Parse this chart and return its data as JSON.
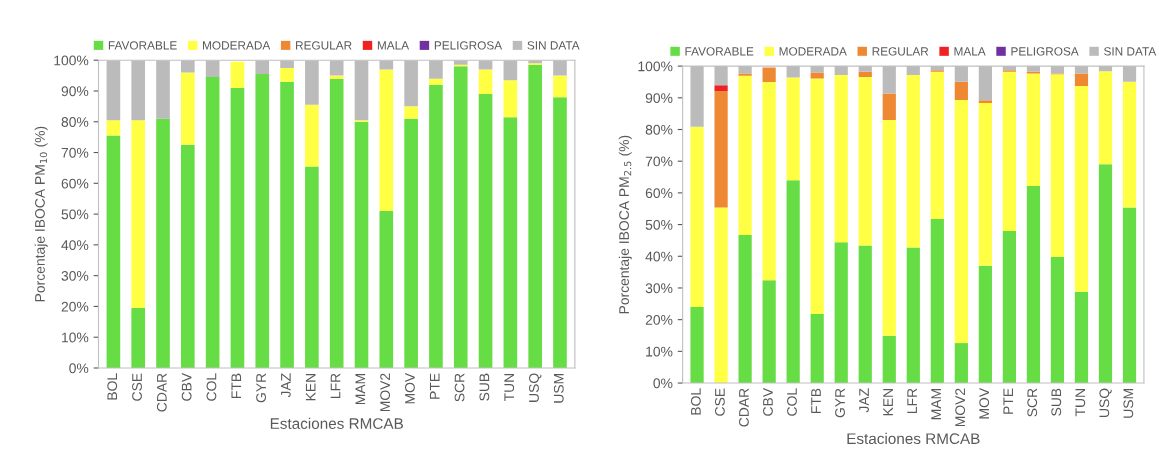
{
  "chart_data": [
    {
      "type": "bar",
      "stacked": true,
      "xlabel": "Estaciones RMCAB",
      "ylabel": "Porcentaje IBOCA PM$_{10}$ (%)",
      "legend": "top",
      "grid": false,
      "categories": [
        "BOL",
        "CSE",
        "CDAR",
        "CBV",
        "COL",
        "FTB",
        "GYR",
        "JAZ",
        "KEN",
        "LFR",
        "MAM",
        "MOV2",
        "MOV",
        "PTE",
        "SCR",
        "SUB",
        "TUN",
        "USQ",
        "USM"
      ],
      "ylim": [
        0,
        100
      ],
      "yticks": [
        {
          "value": 0,
          "label": "0%"
        },
        {
          "value": 10,
          "label": "10%"
        },
        {
          "value": 20,
          "label": "20%"
        },
        {
          "value": 30,
          "label": "30%"
        },
        {
          "value": 40,
          "label": "40%"
        },
        {
          "value": 50,
          "label": "50%"
        },
        {
          "value": 60,
          "label": "60%"
        },
        {
          "value": 70,
          "label": "70%"
        },
        {
          "value": 80,
          "label": "80%"
        },
        {
          "value": 90,
          "label": "90%"
        },
        {
          "value": 100,
          "label": "100%"
        }
      ],
      "series": [
        {
          "name": "FAVORABLE",
          "color": "#66dd44",
          "values": [
            75.5,
            19.5,
            81,
            72.5,
            94.5,
            91,
            95.5,
            93,
            65.5,
            94,
            80,
            51,
            81,
            92,
            98,
            89,
            81.5,
            98.5,
            88
          ]
        },
        {
          "name": "MODERADA",
          "color": "#ffff44",
          "values": [
            5,
            61,
            0,
            23.5,
            0,
            8.5,
            0,
            4.5,
            20,
            1,
            0.5,
            46,
            4,
            2,
            0.5,
            8,
            12,
            0.5,
            7
          ]
        },
        {
          "name": "REGULAR",
          "color": "#ee8833",
          "values": [
            0,
            0,
            0,
            0,
            0,
            0,
            0,
            0,
            0,
            0,
            0,
            0,
            0,
            0,
            0,
            0,
            0,
            0,
            0
          ]
        },
        {
          "name": "MALA",
          "color": "#ee2222",
          "values": [
            0,
            0,
            0,
            0,
            0,
            0,
            0,
            0,
            0,
            0,
            0,
            0,
            0,
            0,
            0,
            0,
            0,
            0,
            0
          ]
        },
        {
          "name": "PELIGROSA",
          "color": "#7030a0",
          "values": [
            0,
            0,
            0,
            0,
            0,
            0,
            0,
            0,
            0,
            0,
            0,
            0,
            0,
            0,
            0,
            0,
            0,
            0,
            0
          ]
        },
        {
          "name": "SIN DATA",
          "color": "#bbbbbb",
          "values": [
            19.5,
            19.5,
            19,
            4,
            5.5,
            null,
            4.5,
            2.5,
            14.5,
            5,
            19.5,
            3,
            15,
            6,
            1.5,
            3,
            6.5,
            1,
            5
          ]
        }
      ]
    },
    {
      "type": "bar",
      "stacked": true,
      "xlabel": "Estaciones RMCAB",
      "ylabel": "Porcentaje IBOCA PM$_{2.5}$ (%)",
      "legend": "top",
      "grid": false,
      "categories": [
        "BOL",
        "CSE",
        "CDAR",
        "CBV",
        "COL",
        "FTB",
        "GYR",
        "JAZ",
        "KEN",
        "LFR",
        "MAM",
        "MOV2",
        "MOV",
        "PTE",
        "SCR",
        "SUB",
        "TUN",
        "USQ",
        "USM"
      ],
      "ylim": [
        0,
        100
      ],
      "yticks": [
        {
          "value": 0,
          "label": "0%"
        },
        {
          "value": 10,
          "label": "10%"
        },
        {
          "value": 20,
          "label": "20%"
        },
        {
          "value": 30,
          "label": "30%"
        },
        {
          "value": 40,
          "label": "40%"
        },
        {
          "value": 50,
          "label": "50%"
        },
        {
          "value": 60,
          "label": "60%"
        },
        {
          "value": 70,
          "label": "70%"
        },
        {
          "value": 80,
          "label": "80%"
        },
        {
          "value": 90,
          "label": "90%"
        },
        {
          "value": 100,
          "label": "100%"
        }
      ],
      "series": [
        {
          "name": "FAVORABLE",
          "color": "#66dd44",
          "values": [
            24,
            0,
            46.7,
            32.4,
            64,
            21.8,
            44.4,
            43.4,
            14.9,
            42.8,
            51.8,
            12.6,
            37,
            48,
            62.2,
            39.8,
            28.8,
            69,
            55.4
          ]
        },
        {
          "name": "MODERADA",
          "color": "#ffff44",
          "values": [
            56.9,
            55.4,
            50.3,
            62.6,
            32.4,
            74.3,
            52.8,
            53.2,
            68.1,
            54.4,
            46.4,
            76.7,
            51.4,
            50.2,
            35.5,
            57.6,
            64.9,
            29.4,
            39.7
          ]
        },
        {
          "name": "REGULAR",
          "color": "#ee8833",
          "values": [
            0,
            36.7,
            0.7,
            4.6,
            0,
            1.9,
            0,
            1.6,
            8.4,
            0,
            0.5,
            5.8,
            0.8,
            0.5,
            0.5,
            0.3,
            4,
            0,
            0
          ]
        },
        {
          "name": "MALA",
          "color": "#ee2222",
          "values": [
            0,
            1.9,
            0,
            0,
            0,
            0,
            0,
            0,
            0,
            0,
            0,
            0,
            0,
            0,
            0,
            0,
            0,
            0,
            0
          ]
        },
        {
          "name": "PELIGROSA",
          "color": "#7030a0",
          "values": [
            0,
            0,
            0,
            0,
            0,
            0,
            0,
            0,
            0,
            0,
            0,
            0,
            0,
            0,
            0,
            0,
            0,
            0,
            0
          ]
        },
        {
          "name": "SIN DATA",
          "color": "#bbbbbb",
          "values": [
            19.1,
            6,
            2.3,
            null,
            3.6,
            2,
            2.8,
            1.8,
            8.6,
            2.8,
            1.3,
            4.9,
            10.8,
            1.3,
            1.8,
            2.3,
            2.3,
            1.6,
            4.9
          ]
        }
      ]
    }
  ]
}
